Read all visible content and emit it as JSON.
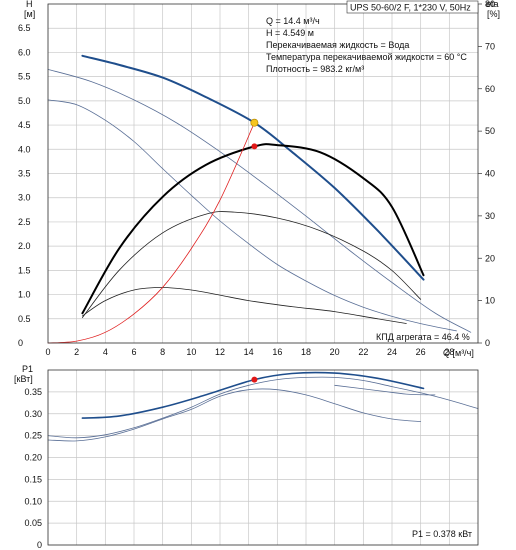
{
  "chart_data": [
    {
      "type": "line",
      "title": "UPS 50-60/2 F, 1*230 V, 50Hz",
      "xlabel": "Q [м³/ч]",
      "ylabel": "H [м]",
      "ylabel_unit": "[м]",
      "ylabel_sym": "H",
      "y2label_sym": "eta",
      "y2label_unit": "[%]",
      "xlim": [
        0,
        30
      ],
      "ylim": [
        0,
        7
      ],
      "y2lim": [
        0,
        80
      ],
      "xticks": [
        "0",
        "2",
        "4",
        "6",
        "8",
        "10",
        "12",
        "14",
        "16",
        "18",
        "20",
        "22",
        "24",
        "26",
        "28"
      ],
      "yticks": [
        "0",
        "0.5",
        "1.0",
        "1.5",
        "2.0",
        "2.5",
        "3.0",
        "3.5",
        "4.0",
        "4.5",
        "5.0",
        "5.5",
        "6.0",
        "6.5"
      ],
      "y2ticks": [
        "0",
        "10",
        "20",
        "30",
        "40",
        "50",
        "60",
        "70",
        "80"
      ],
      "grid": true,
      "info": [
        "Q = 14.4 м³/ч",
        "H = 4.549 м",
        "Перекачиваемая жидкость = Вода",
        "Температура перекачиваемой жидкости = 60 °C",
        "Плотность = 983.2 кг/м³"
      ],
      "annotation": "КПД агрегата = 46.4 %",
      "duty_point": {
        "x": 14.4,
        "y": 4.549
      },
      "eta_point": {
        "x": 14.4,
        "eta": 46.4
      },
      "series": [
        {
          "kind": "pump-curve-speed3",
          "color": "#1f4e8c",
          "width": 2,
          "x": [
            2.4,
            5,
            8,
            11,
            14.4,
            17,
            20,
            23,
            26.2
          ],
          "y": [
            5.93,
            5.74,
            5.48,
            5.08,
            4.549,
            3.95,
            3.2,
            2.32,
            1.31
          ]
        },
        {
          "kind": "pump-curve-speed2",
          "color": "#5a6f96",
          "width": 0.8,
          "x": [
            0,
            3,
            6,
            9,
            12,
            15,
            18,
            21,
            24,
            27,
            29.5
          ],
          "y": [
            5.65,
            5.4,
            5.02,
            4.54,
            3.95,
            3.3,
            2.62,
            1.92,
            1.25,
            0.62,
            0.22
          ]
        },
        {
          "kind": "pump-curve-speed1",
          "color": "#5a6f96",
          "width": 0.8,
          "x": [
            0,
            2,
            4,
            6,
            8,
            10,
            12,
            14,
            16,
            18,
            20,
            22,
            24,
            26,
            28.5
          ],
          "y": [
            5.02,
            4.92,
            4.6,
            4.16,
            3.6,
            3.05,
            2.52,
            2.05,
            1.62,
            1.28,
            0.98,
            0.74,
            0.55,
            0.4,
            0.25
          ]
        },
        {
          "kind": "eta-speed3",
          "color": "#000000",
          "width": 2,
          "axis": "y2",
          "x": [
            2.4,
            5,
            8,
            11,
            14.4,
            16,
            19,
            22,
            24,
            26.2
          ],
          "y": [
            7,
            22.5,
            34.5,
            42,
            46.4,
            46.7,
            45,
            38.9,
            32.1,
            16
          ]
        },
        {
          "kind": "eta-speed2",
          "color": "#222222",
          "width": 0.8,
          "axis": "y2",
          "x": [
            2.4,
            5,
            8,
            11,
            13,
            16,
            19,
            22,
            24,
            26
          ],
          "y": [
            6,
            17.3,
            26,
            30.4,
            30.9,
            29.5,
            26.5,
            21.7,
            17.1,
            10.3
          ]
        },
        {
          "kind": "eta-speed1",
          "color": "#222222",
          "width": 0.8,
          "axis": "y2",
          "x": [
            2.4,
            4,
            6,
            8,
            10,
            12,
            14,
            17,
            20,
            23,
            25
          ],
          "y": [
            6.4,
            10,
            12.5,
            13.1,
            12.5,
            11.3,
            10,
            8.6,
            7.4,
            5.7,
            4.6
          ]
        },
        {
          "kind": "system-curve",
          "color": "#e02020",
          "width": 0.8,
          "x": [
            0,
            2,
            4,
            6,
            8,
            10,
            12,
            14.4
          ],
          "y": [
            0,
            0.04,
            0.22,
            0.6,
            1.15,
            1.95,
            2.95,
            4.549
          ]
        }
      ]
    },
    {
      "type": "line",
      "ylabel_sym": "P1",
      "ylabel_unit": "[кВт]",
      "ylim": [
        0,
        0.4
      ],
      "yticks": [
        "0",
        "0.05",
        "0.10",
        "0.15",
        "0.20",
        "0.25",
        "0.30",
        "0.35"
      ],
      "grid": true,
      "annotation": "P1 = 0.378 кВт",
      "power_point": {
        "x": 14.4,
        "y": 0.378
      },
      "series": [
        {
          "kind": "p1-speed3",
          "color": "#1f4e8c",
          "width": 1.6,
          "x": [
            2.4,
            5,
            8,
            11,
            14.4,
            17,
            20,
            23,
            26.2
          ],
          "y": [
            0.29,
            0.295,
            0.315,
            0.343,
            0.378,
            0.392,
            0.393,
            0.381,
            0.358
          ]
        },
        {
          "kind": "p1-speed2",
          "color": "#5a6f96",
          "width": 0.8,
          "x": [
            0,
            2,
            4,
            6,
            8,
            10,
            12,
            14,
            16,
            18,
            20,
            22,
            24,
            27,
            30
          ],
          "y": [
            0.25,
            0.245,
            0.252,
            0.268,
            0.29,
            0.315,
            0.345,
            0.365,
            0.378,
            0.383,
            0.383,
            0.376,
            0.362,
            0.34,
            0.312
          ]
        },
        {
          "kind": "p1-speed1",
          "color": "#5a6f96",
          "width": 0.8,
          "x": [
            0,
            2,
            4,
            6,
            8,
            10,
            12,
            14,
            16,
            18,
            20,
            22,
            24,
            26
          ],
          "y": [
            0.24,
            0.238,
            0.247,
            0.265,
            0.288,
            0.31,
            0.34,
            0.355,
            0.355,
            0.343,
            0.323,
            0.302,
            0.288,
            0.282
          ]
        },
        {
          "kind": "p1-extra",
          "color": "#5a6f96",
          "width": 0.8,
          "x": [
            20,
            23,
            25,
            27
          ],
          "y": [
            0.365,
            0.353,
            0.345,
            0.343
          ]
        }
      ]
    }
  ]
}
